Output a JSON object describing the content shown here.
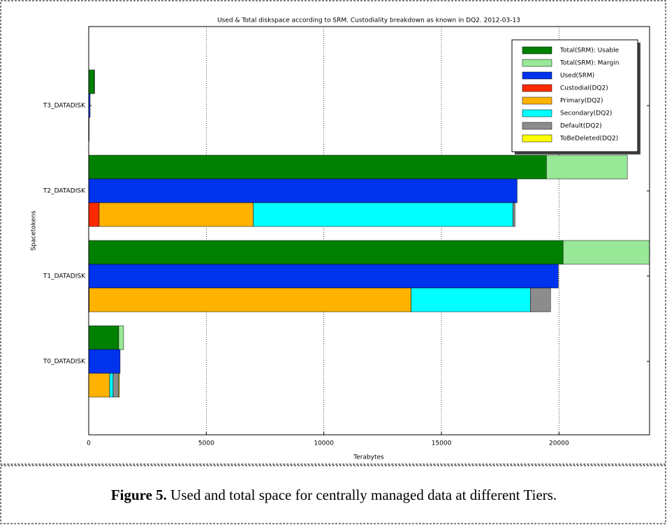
{
  "chart_data": {
    "type": "barh",
    "title": "Used & Total diskspace according to SRM. Custodiality breakdown as known in DQ2. 2012-03-13",
    "xlabel": "Terabytes",
    "ylabel": "Spacetokens",
    "categories": [
      "T0_DATADISK",
      "T1_DATADISK",
      "T2_DATADISK",
      "T3_DATADISK"
    ],
    "series": [
      {
        "name": "Total(SRM): Usable",
        "color": "#008000",
        "values": [
          1276,
          20175,
          19465,
          240
        ]
      },
      {
        "name": "Total(SRM): Margin",
        "color": "#98e898",
        "values": [
          208,
          3675,
          3440,
          10
        ]
      },
      {
        "name": "Used(SRM)",
        "color": "#0033ee",
        "values": [
          1335,
          19970,
          18220,
          60
        ]
      },
      {
        "name": "Custodial(DQ2)",
        "color": "#ff2a00",
        "values": [
          0,
          20,
          445,
          0
        ]
      },
      {
        "name": "Primary(DQ2)",
        "color": "#ffb300",
        "values": [
          890,
          13690,
          6555,
          20
        ]
      },
      {
        "name": "Secondary(DQ2)",
        "color": "#00ffff",
        "values": [
          148,
          5070,
          11040,
          0
        ]
      },
      {
        "name": "Default(DQ2)",
        "color": "#8c8c8c",
        "values": [
          237,
          860,
          90,
          0
        ]
      },
      {
        "name": "ToBeDeleted(DQ2)",
        "color": "#ffff00",
        "values": [
          30,
          0,
          0,
          0
        ]
      }
    ],
    "xlim": [
      0,
      23850
    ],
    "xticks": [
      0,
      5000,
      10000,
      15000,
      20000
    ],
    "grid": true,
    "legend": "upper right"
  },
  "caption": {
    "label": "Figure 5.",
    "text": "Used and total space for centrally managed data at different Tiers."
  }
}
